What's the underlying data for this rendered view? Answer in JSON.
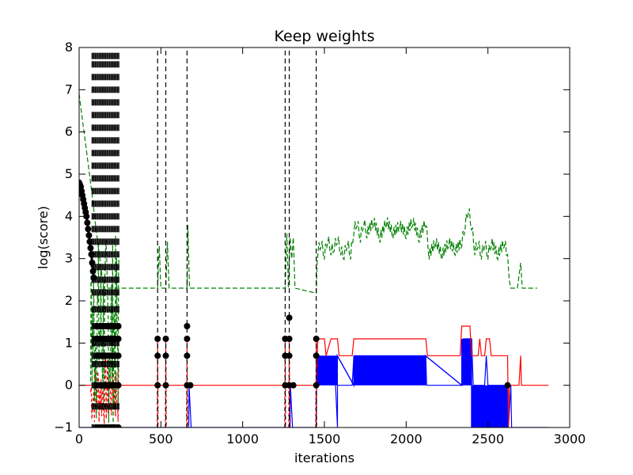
{
  "chart_data": {
    "type": "line",
    "title": "Keep weights",
    "xlabel": "iterations",
    "ylabel": "log(score)",
    "xlim": [
      0,
      3000
    ],
    "ylim": [
      -1,
      8
    ],
    "xticks": [
      0,
      500,
      1000,
      1500,
      2000,
      2500,
      3000
    ],
    "yticks": [
      -1,
      0,
      1,
      2,
      3,
      4,
      5,
      6,
      7,
      8
    ],
    "xtick_labels": [
      "0",
      "500",
      "1000",
      "1500",
      "2000",
      "2500",
      "3000"
    ],
    "ytick_labels": [
      "−1",
      "0",
      "1",
      "2",
      "3",
      "4",
      "5",
      "6",
      "7",
      "8"
    ],
    "grid": false,
    "legend": "none",
    "series": [
      {
        "style": "black-dashed-with-markers",
        "color": "#000000",
        "decay_points": [
          [
            0,
            4.8
          ],
          [
            5,
            4.75
          ],
          [
            10,
            4.7
          ],
          [
            15,
            4.6
          ],
          [
            20,
            4.5
          ],
          [
            25,
            4.4
          ],
          [
            30,
            4.3
          ],
          [
            35,
            4.2
          ],
          [
            40,
            4.1
          ],
          [
            45,
            4.0
          ],
          [
            50,
            3.85
          ],
          [
            55,
            3.7
          ],
          [
            60,
            3.55
          ],
          [
            65,
            3.4
          ],
          [
            70,
            3.25
          ],
          [
            75,
            3.1
          ],
          [
            80,
            2.9
          ],
          [
            85,
            2.7
          ],
          [
            90,
            2.55
          ]
        ],
        "dense_stack_x_range": [
          80,
          245
        ],
        "dense_stack_y_levels": [
          -1,
          -0.5,
          0,
          0.5,
          0.7,
          1,
          1.1,
          1.4,
          1.8,
          2.2,
          2.5,
          2.8,
          3.1,
          3.4,
          3.7,
          4.0,
          4.3,
          4.6,
          4.9,
          5.2,
          5.5,
          5.8,
          6.1,
          6.4,
          6.7,
          7.0,
          7.3,
          7.6,
          7.8
        ],
        "spikes": [
          {
            "x": 480,
            "markers": [
              1.1,
              0.7,
              0
            ]
          },
          {
            "x": 530,
            "markers": [
              1.1,
              0.7,
              0
            ]
          },
          {
            "x": 660,
            "markers": [
              1.4,
              1.1,
              0.7,
              0
            ]
          },
          {
            "x": 1260,
            "markers": [
              1.1,
              0.7,
              0
            ]
          },
          {
            "x": 1285,
            "markers": [
              1.6,
              1.1,
              0.7,
              0
            ]
          },
          {
            "x": 1450,
            "markers": [
              1.1,
              0.7,
              0
            ]
          }
        ],
        "extra_markers": [
          [
            680,
            0
          ],
          [
            1310,
            0
          ],
          [
            2620,
            0
          ]
        ]
      },
      {
        "style": "green-dashed",
        "color": "#008000",
        "points": [
          [
            0,
            6.9
          ],
          [
            20,
            6.3
          ],
          [
            40,
            5.7
          ],
          [
            60,
            5.1
          ],
          [
            80,
            4.5
          ],
          [
            100,
            3.8
          ],
          [
            120,
            3.2
          ],
          [
            140,
            2.6
          ],
          [
            150,
            2.3
          ],
          [
            480,
            2.3
          ],
          [
            490,
            3.3
          ],
          [
            500,
            2.3
          ],
          [
            530,
            2.3
          ],
          [
            540,
            3.4
          ],
          [
            550,
            2.3
          ],
          [
            660,
            2.3
          ],
          [
            665,
            3.8
          ],
          [
            675,
            2.3
          ],
          [
            1260,
            2.3
          ],
          [
            1270,
            3.6
          ],
          [
            1280,
            2.3
          ],
          [
            1290,
            3.5
          ],
          [
            1300,
            3.0
          ],
          [
            1310,
            3.5
          ],
          [
            1320,
            2.3
          ],
          [
            1450,
            2.3
          ],
          [
            1460,
            3.2
          ],
          [
            1480,
            3.4
          ],
          [
            1500,
            3.1
          ],
          [
            1520,
            3.5
          ],
          [
            1540,
            3.2
          ],
          [
            1560,
            3.3
          ],
          [
            1580,
            3.5
          ],
          [
            1600,
            3.2
          ],
          [
            1620,
            3.1
          ],
          [
            1640,
            3.4
          ],
          [
            1660,
            3.1
          ],
          [
            1680,
            3.7
          ],
          [
            1700,
            3.9
          ],
          [
            1720,
            3.5
          ],
          [
            1740,
            3.9
          ],
          [
            1760,
            3.6
          ],
          [
            1800,
            3.9
          ],
          [
            1840,
            3.5
          ],
          [
            1880,
            3.9
          ],
          [
            1920,
            3.6
          ],
          [
            1960,
            3.8
          ],
          [
            2000,
            3.6
          ],
          [
            2040,
            3.9
          ],
          [
            2080,
            3.5
          ],
          [
            2120,
            3.9
          ],
          [
            2140,
            3.1
          ],
          [
            2180,
            3.4
          ],
          [
            2220,
            3.1
          ],
          [
            2260,
            3.4
          ],
          [
            2300,
            3.2
          ],
          [
            2340,
            3.4
          ],
          [
            2360,
            3.8
          ],
          [
            2380,
            4.2
          ],
          [
            2400,
            3.8
          ],
          [
            2420,
            3.2
          ],
          [
            2440,
            3.4
          ],
          [
            2460,
            3.1
          ],
          [
            2480,
            3.4
          ],
          [
            2500,
            3.1
          ],
          [
            2520,
            3.4
          ],
          [
            2560,
            3.1
          ],
          [
            2600,
            3.4
          ],
          [
            2620,
            3.1
          ],
          [
            2630,
            2.5
          ],
          [
            2640,
            2.3
          ],
          [
            2680,
            2.3
          ],
          [
            2700,
            2.9
          ],
          [
            2710,
            2.3
          ],
          [
            2780,
            2.3
          ],
          [
            2800,
            2.3
          ]
        ],
        "dense_noise_x_range": [
          70,
          245
        ],
        "dense_noise_y_range": [
          -1,
          3.6
        ]
      },
      {
        "style": "red-solid",
        "color": "#ff0000",
        "points": [
          [
            0,
            0
          ],
          [
            1450,
            0
          ],
          [
            1460,
            1.1
          ],
          [
            1500,
            1.1
          ],
          [
            1510,
            0.7
          ],
          [
            1540,
            1.1
          ],
          [
            1580,
            1.1
          ],
          [
            1590,
            0.7
          ],
          [
            1670,
            0.7
          ],
          [
            1680,
            1.1
          ],
          [
            2120,
            1.1
          ],
          [
            2130,
            0.7
          ],
          [
            2330,
            0.7
          ],
          [
            2340,
            1.4
          ],
          [
            2390,
            1.4
          ],
          [
            2400,
            0.7
          ],
          [
            2440,
            0.7
          ],
          [
            2450,
            1.1
          ],
          [
            2460,
            0.7
          ],
          [
            2480,
            0.7
          ],
          [
            2490,
            1.1
          ],
          [
            2510,
            1.1
          ],
          [
            2520,
            0.7
          ],
          [
            2620,
            0.7
          ],
          [
            2625,
            -1
          ],
          [
            2630,
            0
          ],
          [
            2690,
            0
          ],
          [
            2700,
            0.7
          ],
          [
            2705,
            0
          ],
          [
            2870,
            0
          ]
        ],
        "dense_noise_x_range": [
          70,
          245
        ],
        "dense_noise_y_range": [
          -1,
          0.7
        ],
        "spikes": [
          480,
          530,
          660,
          1260,
          1285,
          1450
        ]
      },
      {
        "style": "blue-solid",
        "color": "#0000ff",
        "points": [
          [
            0,
            -1
          ],
          [
            670,
            -1
          ],
          [
            672,
            0
          ],
          [
            685,
            -1
          ],
          [
            1290,
            -1
          ],
          [
            1292,
            0
          ],
          [
            1305,
            -1
          ],
          [
            1450,
            -1
          ],
          [
            1452,
            0
          ],
          [
            1480,
            0.7
          ],
          [
            1500,
            0
          ],
          [
            1520,
            0.7
          ],
          [
            1540,
            0
          ],
          [
            1560,
            0.7
          ],
          [
            1580,
            -1
          ],
          [
            1580,
            0
          ],
          [
            1670,
            0
          ],
          [
            1680,
            0.7
          ],
          [
            2120,
            0.7
          ],
          [
            2125,
            0
          ],
          [
            2340,
            0
          ],
          [
            2350,
            1.1
          ],
          [
            2400,
            1.1
          ],
          [
            2410,
            0
          ],
          [
            2480,
            0
          ],
          [
            2490,
            0.7
          ],
          [
            2500,
            0
          ],
          [
            2620,
            0
          ],
          [
            2625,
            -1
          ],
          [
            2640,
            0
          ],
          [
            2645,
            -1
          ],
          [
            2870,
            -1
          ]
        ],
        "dense_toggle_ranges": [
          [
            1450,
            1580,
            0,
            0.7
          ],
          [
            1680,
            2120,
            0,
            0.7
          ],
          [
            2340,
            2400,
            0,
            1.1
          ],
          [
            2400,
            2620,
            -1,
            0
          ]
        ]
      }
    ]
  }
}
